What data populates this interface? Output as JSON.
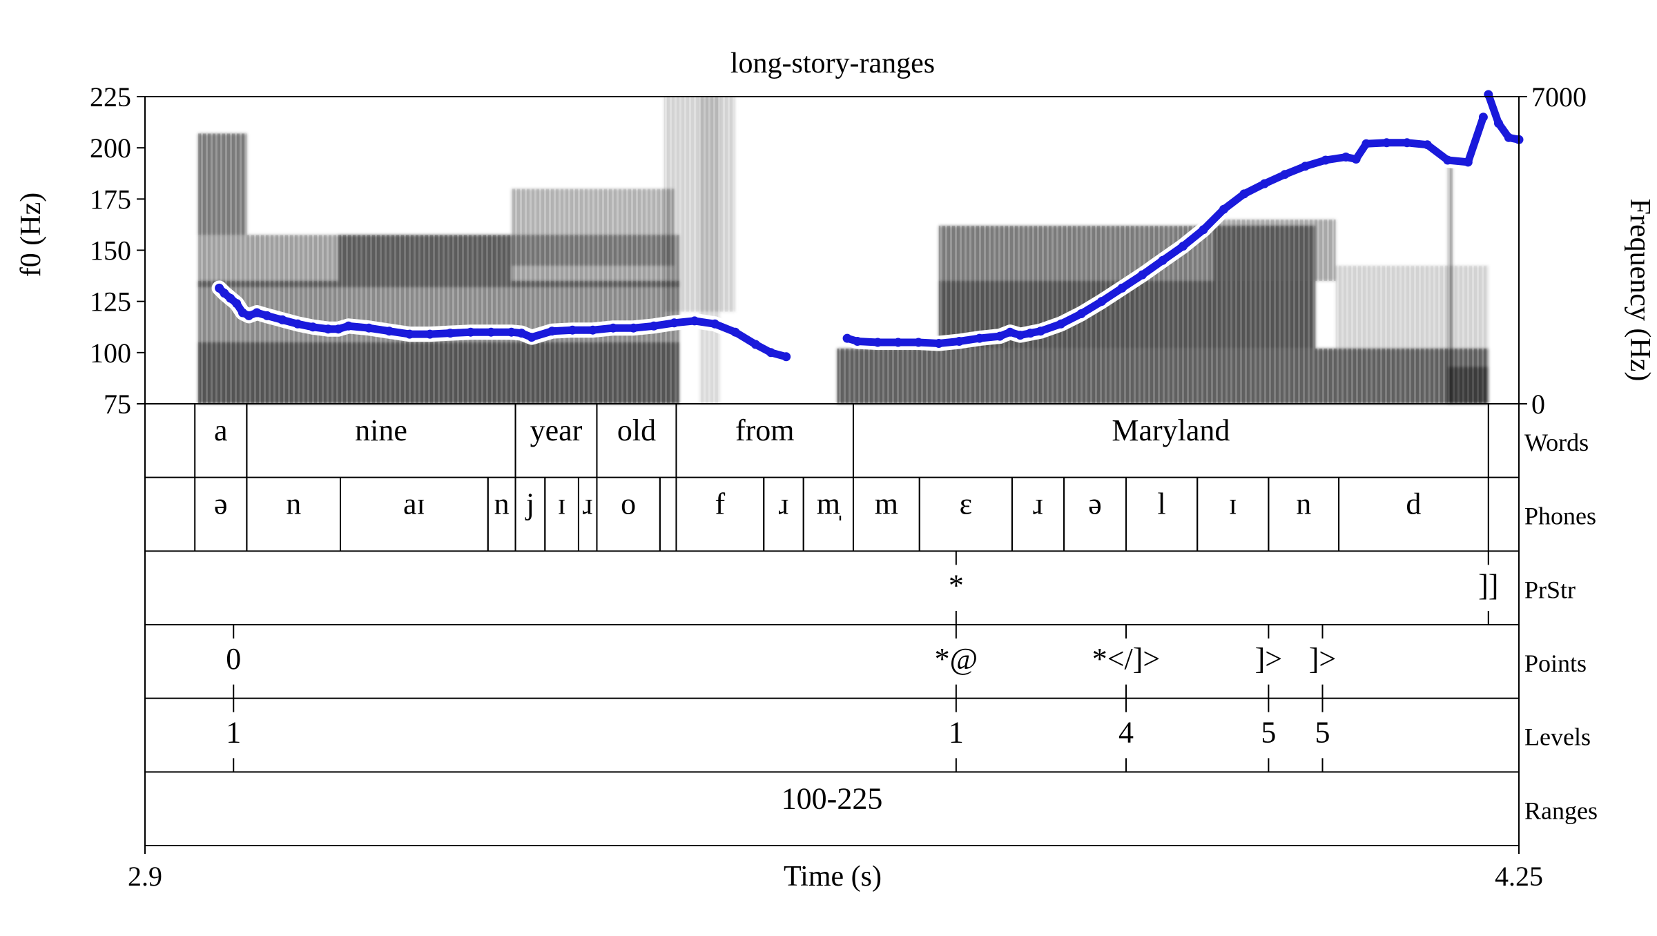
{
  "chart_data": {
    "type": "line",
    "title": "long-story-ranges",
    "xlabel": "Time (s)",
    "ylabel": "f0 (Hz)",
    "ylabel_right": "Frequency (Hz)",
    "xlim": [
      2.9,
      4.25
    ],
    "ylim": [
      75,
      225
    ],
    "ylim_right": [
      0,
      7000
    ],
    "x_ticks": [
      "2.9",
      "4.25"
    ],
    "y_ticks": [
      "225",
      "200",
      "175",
      "150",
      "125",
      "100",
      "75"
    ],
    "y_ticks_right": [
      "7000",
      "0"
    ],
    "series": [
      {
        "color": "#1a1adb",
        "x": [
          2.973,
          2.978,
          2.984,
          2.99,
          2.996,
          3.002,
          3.01,
          3.02,
          3.035,
          3.05,
          3.065,
          3.08,
          3.09,
          3.1,
          3.12,
          3.14,
          3.16,
          3.18,
          3.2,
          3.22,
          3.24,
          3.26,
          3.27,
          3.28,
          3.3,
          3.32,
          3.34,
          3.36,
          3.38,
          3.4,
          3.42,
          3.44,
          3.46,
          3.48,
          3.5,
          3.515,
          3.53
        ],
        "y": [
          131.5,
          129,
          126.5,
          124,
          119.5,
          118,
          119.5,
          118,
          116,
          114,
          112.5,
          111.5,
          111.5,
          113,
          112,
          110.5,
          109,
          109,
          109.5,
          110,
          110,
          110,
          109.5,
          107.5,
          110.5,
          111,
          111,
          112,
          112,
          113,
          114.5,
          115.5,
          114,
          110,
          104,
          100,
          98
        ]
      },
      {
        "color": "#1a1adb",
        "x": [
          3.59,
          3.6,
          3.62,
          3.64,
          3.66,
          3.68,
          3.7,
          3.72,
          3.74,
          3.75,
          3.76,
          3.77,
          3.78,
          3.8,
          3.82,
          3.84,
          3.86,
          3.88,
          3.9,
          3.92,
          3.94,
          3.96,
          3.98,
          4.0,
          4.02,
          4.04,
          4.06,
          4.08,
          4.09,
          4.1,
          4.12,
          4.14,
          4.16,
          4.18,
          4.2,
          4.215
        ],
        "y": [
          107,
          105.5,
          105,
          105,
          105,
          104.5,
          105.5,
          107,
          108,
          110,
          108.5,
          109.5,
          110.5,
          114,
          119,
          125,
          131.5,
          138,
          145,
          152,
          160,
          170,
          177.5,
          182.5,
          187,
          191,
          194,
          195.5,
          194.5,
          202,
          202.5,
          202.5,
          201.5,
          194,
          193,
          215
        ]
      },
      {
        "color": "#1a1adb",
        "x": [
          4.22,
          4.23,
          4.24,
          4.25
        ],
        "y": [
          226,
          212,
          205,
          204
        ]
      }
    ]
  },
  "tiers": {
    "names": [
      "Words",
      "Phones",
      "PrStr",
      "Points",
      "Levels",
      "Ranges"
    ],
    "words": [
      {
        "t0": 2.949,
        "t1": 3.0,
        "label": "a"
      },
      {
        "t0": 3.0,
        "t1": 3.264,
        "label": "nine"
      },
      {
        "t0": 3.264,
        "t1": 3.344,
        "label": "year"
      },
      {
        "t0": 3.344,
        "t1": 3.422,
        "label": "old"
      },
      {
        "t0": 3.422,
        "t1": 3.596,
        "label": "from"
      },
      {
        "t0": 3.596,
        "t1": 4.22,
        "label": "Maryland"
      }
    ],
    "phones": [
      {
        "t0": 2.949,
        "t1": 3.0,
        "label": "ə"
      },
      {
        "t0": 3.0,
        "t1": 3.092,
        "label": "n"
      },
      {
        "t0": 3.092,
        "t1": 3.237,
        "label": "aɪ"
      },
      {
        "t0": 3.237,
        "t1": 3.264,
        "label": "n"
      },
      {
        "t0": 3.264,
        "t1": 3.293,
        "label": "j"
      },
      {
        "t0": 3.293,
        "t1": 3.326,
        "label": "ɪ"
      },
      {
        "t0": 3.326,
        "t1": 3.344,
        "label": "ɹ"
      },
      {
        "t0": 3.344,
        "t1": 3.406,
        "label": "o"
      },
      {
        "t0": 3.406,
        "t1": 3.422,
        "label": ""
      },
      {
        "t0": 3.422,
        "t1": 3.508,
        "label": "f"
      },
      {
        "t0": 3.508,
        "t1": 3.547,
        "label": "ɹ"
      },
      {
        "t0": 3.547,
        "t1": 3.596,
        "label": "m̩"
      },
      {
        "t0": 3.596,
        "t1": 3.661,
        "label": "m"
      },
      {
        "t0": 3.661,
        "t1": 3.752,
        "label": "ɛ"
      },
      {
        "t0": 3.752,
        "t1": 3.803,
        "label": "ɹ"
      },
      {
        "t0": 3.803,
        "t1": 3.864,
        "label": "ə"
      },
      {
        "t0": 3.864,
        "t1": 3.934,
        "label": "l"
      },
      {
        "t0": 3.934,
        "t1": 4.004,
        "label": "ɪ"
      },
      {
        "t0": 4.004,
        "t1": 4.073,
        "label": "n"
      },
      {
        "t0": 4.073,
        "t1": 4.22,
        "label": "d"
      }
    ],
    "prstr": [
      {
        "t": 3.697,
        "label": "*"
      },
      {
        "t": 4.22,
        "label": "]]"
      }
    ],
    "points": [
      {
        "t": 2.987,
        "label": "0"
      },
      {
        "t": 3.697,
        "label": "*@"
      },
      {
        "t": 3.864,
        "label": "*</]>"
      },
      {
        "t": 4.004,
        "label": "]>"
      },
      {
        "t": 4.057,
        "label": "]>"
      }
    ],
    "levels": [
      {
        "t": 2.987,
        "label": "1"
      },
      {
        "t": 3.697,
        "label": "1"
      },
      {
        "t": 3.864,
        "label": "4"
      },
      {
        "t": 4.004,
        "label": "5"
      },
      {
        "t": 4.057,
        "label": "5"
      }
    ],
    "ranges": [
      {
        "t0": 2.9,
        "t1": 4.25,
        "label": "100-225"
      }
    ]
  }
}
